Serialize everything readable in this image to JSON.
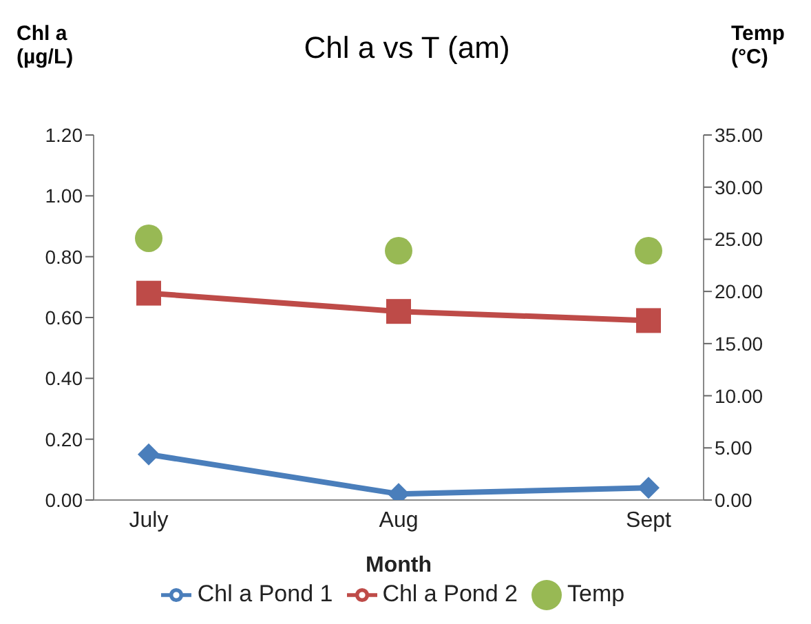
{
  "chart_data": {
    "type": "line",
    "title": "Chl a vs T (am)",
    "xlabel": "Month",
    "ylabel": "Chl a (µg/L)",
    "y2label": "Temp (°C)",
    "categories": [
      "July",
      "Aug",
      "Sept"
    ],
    "series": [
      {
        "name": "Chl a Pond 1",
        "color": "#4a7ebb",
        "values": [
          0.15,
          0.02,
          0.04
        ],
        "marker": "diamond"
      },
      {
        "name": "Chl a Pond 2",
        "color": "#be4b48",
        "values": [
          0.68,
          0.62,
          0.59
        ],
        "marker": "square"
      },
      {
        "name": "Temp",
        "type": "scatter",
        "axis": "y2",
        "color": "#98b954",
        "values": [
          25.1,
          23.9,
          23.9
        ],
        "marker": "circle"
      }
    ],
    "ylim": [
      0,
      1.2
    ],
    "yticks": [
      {
        "value": 0,
        "label": "0.00"
      },
      {
        "value": 0.2,
        "label": "0.20"
      },
      {
        "value": 0.4,
        "label": "0.40"
      },
      {
        "value": 0.6,
        "label": "0.60"
      },
      {
        "value": 0.8,
        "label": "0.80"
      },
      {
        "value": 1,
        "label": "1.00"
      },
      {
        "value": 1.2,
        "label": "1.20"
      }
    ],
    "y2lim": [
      0,
      35
    ],
    "y2ticks": [
      {
        "value": 0,
        "label": "0.00"
      },
      {
        "value": 5,
        "label": "5.00"
      },
      {
        "value": 10,
        "label": "10.00"
      },
      {
        "value": 15,
        "label": "15.00"
      },
      {
        "value": 20,
        "label": "20.00"
      },
      {
        "value": 25,
        "label": "25.00"
      },
      {
        "value": 30,
        "label": "30.00"
      },
      {
        "value": 35,
        "label": "35.00"
      }
    ],
    "grid": false,
    "legend": "bottom",
    "line_style": "solid"
  }
}
